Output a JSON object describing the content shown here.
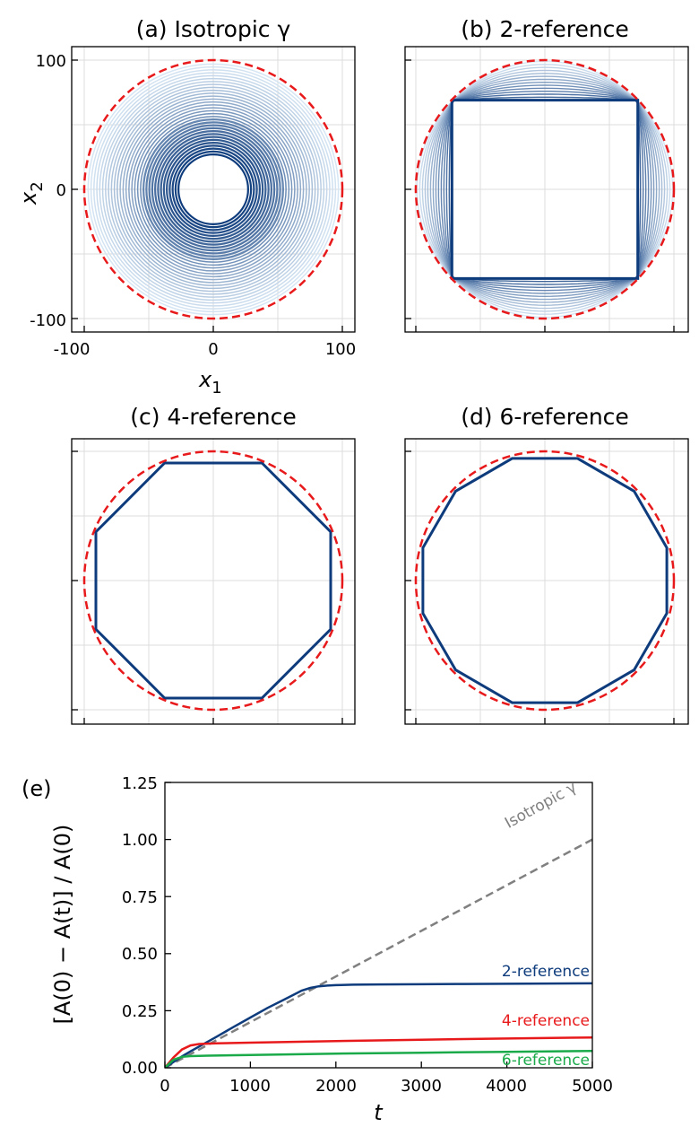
{
  "chart_data": [
    {
      "panel": "(a)",
      "type": "line",
      "title": "(a) Isotropic γ",
      "xlabel_base": "x",
      "xlabel_sub": "1",
      "ylabel_base": "x",
      "ylabel_sub": "2",
      "xlim": [
        -100,
        100
      ],
      "ylim": [
        -100,
        100
      ],
      "xticks": [
        -100,
        0,
        100
      ],
      "yticks": [
        -100,
        0,
        100
      ],
      "xtick_labels": [
        "-100",
        "0",
        "100"
      ],
      "ytick_labels": [
        "-100",
        "0",
        "100"
      ],
      "grid": true,
      "reference_circle": {
        "radius": 100,
        "color": "#e8191b",
        "style": "dashed"
      },
      "contour_family": {
        "shape": "circle",
        "radius_min": 27,
        "radius_max": 97,
        "count": 32,
        "color_light": "#d6e6f4",
        "color_dark": "#0d3b7c"
      }
    },
    {
      "panel": "(b)",
      "type": "line",
      "title": "(b) 2-reference",
      "xlim": [
        -100,
        100
      ],
      "ylim": [
        -100,
        100
      ],
      "grid": true,
      "reference_circle": {
        "radius": 100,
        "color": "#e8191b",
        "style": "dashed"
      },
      "final_shape": {
        "sides": 4,
        "vertices": [
          [
            -72,
            69
          ],
          [
            72,
            69
          ],
          [
            72,
            -69
          ],
          [
            -72,
            -69
          ]
        ],
        "color": "#0d3b7c"
      },
      "contour_family": {
        "count": 14,
        "color_light": "#d6e6f4",
        "color_dark": "#0d3b7c"
      }
    },
    {
      "panel": "(c)",
      "type": "line",
      "title": "(c) 4-reference",
      "xlim": [
        -100,
        100
      ],
      "ylim": [
        -100,
        100
      ],
      "grid": true,
      "reference_circle": {
        "radius": 100,
        "color": "#e8191b",
        "style": "dashed"
      },
      "final_shape": {
        "sides": 8,
        "apothem": 91,
        "rotation_deg": 22.5,
        "color": "#0d3b7c"
      }
    },
    {
      "panel": "(d)",
      "type": "line",
      "title": "(d) 6-reference",
      "xlim": [
        -100,
        100
      ],
      "ylim": [
        -100,
        100
      ],
      "grid": true,
      "reference_circle": {
        "radius": 100,
        "color": "#e8191b",
        "style": "dashed"
      },
      "final_shape": {
        "sides": 12,
        "apothem": 94.5,
        "rotation_deg": 15,
        "color": "#0d3b7c"
      }
    },
    {
      "panel": "(e)",
      "type": "line",
      "panel_label": "(e)",
      "xlabel": "t",
      "ylabel": "[A(0) − A(t)] / A(0)",
      "xlim": [
        0,
        5000
      ],
      "ylim": [
        0,
        1.25
      ],
      "xticks": [
        0,
        1000,
        2000,
        3000,
        4000,
        5000
      ],
      "yticks": [
        0,
        0.25,
        0.5,
        0.75,
        1.0,
        1.25
      ],
      "xtick_labels": [
        "0",
        "1000",
        "2000",
        "3000",
        "4000",
        "5000"
      ],
      "ytick_labels": [
        "0.00",
        "0.25",
        "0.50",
        "0.75",
        "1.00",
        "1.25"
      ],
      "grid": false,
      "series": [
        {
          "name": "Isotropic γ",
          "color": "#808080",
          "style": "dashed",
          "x": [
            0,
            5000
          ],
          "y": [
            0,
            1.0
          ]
        },
        {
          "name": "2-reference",
          "color": "#0d3b7c",
          "style": "solid",
          "x": [
            0,
            100,
            200,
            300,
            400,
            600,
            800,
            1000,
            1200,
            1400,
            1600,
            1700,
            1800,
            1900,
            2000,
            2200,
            2500,
            3000,
            3500,
            4000,
            4500,
            5000
          ],
          "y": [
            0,
            0.025,
            0.05,
            0.072,
            0.093,
            0.135,
            0.178,
            0.22,
            0.262,
            0.3,
            0.338,
            0.35,
            0.357,
            0.36,
            0.362,
            0.364,
            0.365,
            0.366,
            0.367,
            0.368,
            0.369,
            0.37
          ]
        },
        {
          "name": "4-reference",
          "color": "#e8191b",
          "style": "solid",
          "x": [
            0,
            100,
            200,
            300,
            400,
            600,
            1000,
            2000,
            3000,
            4000,
            5000
          ],
          "y": [
            0,
            0.045,
            0.08,
            0.098,
            0.104,
            0.107,
            0.11,
            0.117,
            0.123,
            0.128,
            0.133
          ]
        },
        {
          "name": "6-reference",
          "color": "#1aaa4a",
          "style": "solid",
          "x": [
            0,
            100,
            200,
            300,
            500,
            1000,
            2000,
            3000,
            4000,
            5000
          ],
          "y": [
            0,
            0.035,
            0.048,
            0.051,
            0.053,
            0.056,
            0.062,
            0.066,
            0.07,
            0.074
          ]
        }
      ],
      "annotations": [
        "Isotropic γ",
        "2-reference",
        "4-reference",
        "6-reference"
      ]
    }
  ]
}
